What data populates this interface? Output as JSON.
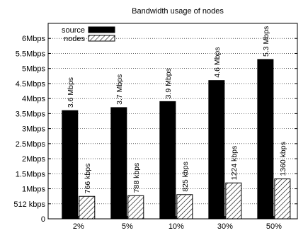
{
  "chart_data": {
    "type": "bar",
    "title": "Bandwidth usage of nodes",
    "xlabel": "",
    "ylabel": "",
    "categories": [
      "2%",
      "5%",
      "10%",
      "30%",
      "50%"
    ],
    "ylim": [
      0,
      6.5
    ],
    "y_unit": "Mbps",
    "y_ticks": [
      {
        "value": 0,
        "label": "0"
      },
      {
        "value": 0.5,
        "label": "512 kbps"
      },
      {
        "value": 1,
        "label": "1Mbps"
      },
      {
        "value": 1.5,
        "label": "1.5Mbps"
      },
      {
        "value": 2,
        "label": "2Mbps"
      },
      {
        "value": 2.5,
        "label": "2.5Mbps"
      },
      {
        "value": 3,
        "label": "3Mbps"
      },
      {
        "value": 3.5,
        "label": "3.5Mbps"
      },
      {
        "value": 4,
        "label": "4Mbps"
      },
      {
        "value": 4.5,
        "label": "4.5Mbps"
      },
      {
        "value": 5,
        "label": "5Mbps"
      },
      {
        "value": 5.5,
        "label": "5.5Mbps"
      },
      {
        "value": 6,
        "label": "6Mbps"
      }
    ],
    "grid": true,
    "legend_position": "top-left",
    "series": [
      {
        "name": "source",
        "style": "solid",
        "color": "#000000",
        "values": [
          3.6,
          3.7,
          3.9,
          4.6,
          5.3
        ],
        "labels": [
          "3.6 Mbps",
          "3.7 Mbps",
          "3.9 Mbps",
          "4.6 Mbps",
          "5.3 Mbps"
        ]
      },
      {
        "name": "nodes",
        "style": "hatched",
        "color": "#000000",
        "values": [
          0.748,
          0.77,
          0.806,
          1.195,
          1.328
        ],
        "labels": [
          "766 kbps",
          "788 kbps",
          "825 kbps",
          "1224 kbps",
          "1360 kbps"
        ]
      }
    ]
  }
}
